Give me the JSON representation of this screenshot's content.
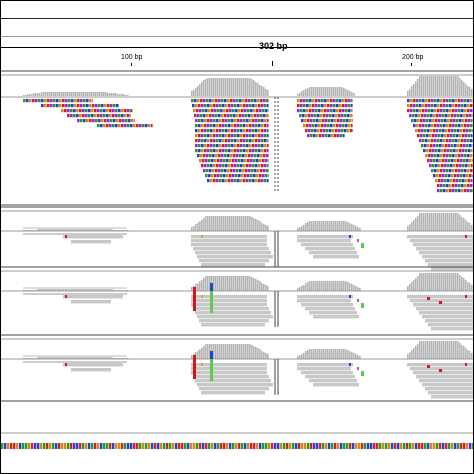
{
  "ruler": {
    "total_label": "302 bp",
    "tick_labels": [
      "100 bp",
      "200 bp"
    ]
  },
  "colors": {
    "coverage": "#b4b4b4",
    "read_gray": "#c8c8c8",
    "base_A": "#1c9d2c",
    "base_C": "#2a3cd6",
    "base_G": "#cf8a1a",
    "base_T": "#d0231f",
    "base_N": "#a020f0",
    "mismatch_red": "#d4141a",
    "mismatch_green": "#5ec851",
    "mismatch_blue": "#2244c9",
    "mismatch_magenta": "#d146b5"
  },
  "panels": [
    {
      "name": "overview-alignment",
      "mode": "colored"
    },
    {
      "name": "sample-1-alignment",
      "mode": "gray"
    },
    {
      "name": "sample-2-alignment",
      "mode": "gray-mismatch"
    },
    {
      "name": "sample-3-alignment",
      "mode": "gray-mismatch"
    }
  ],
  "sequence_track": {
    "bases": "ACGTTGCAAGTCCGATGACTGGATCCTAGCATGCAATCGGTACCTTAGAGCTCGATAGCTTACGGATCTAGCATTGCAGT"
  }
}
